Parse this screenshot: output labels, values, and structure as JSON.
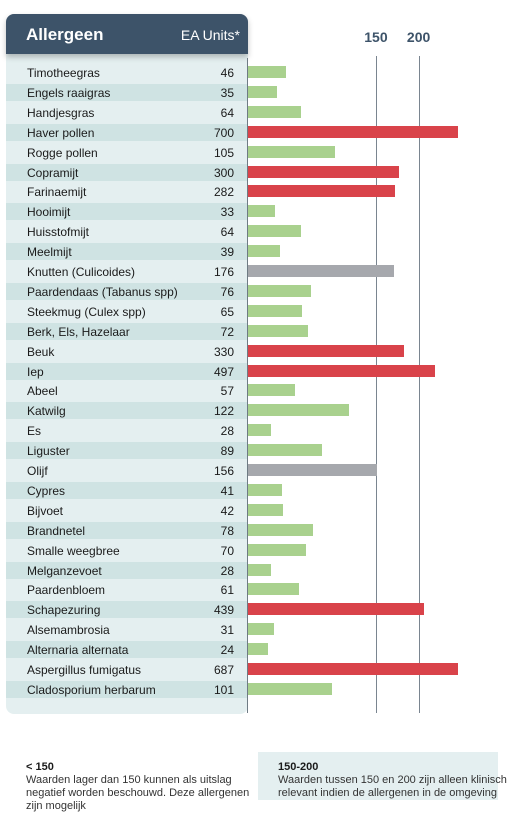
{
  "chart_data": {
    "type": "bar",
    "orientation": "horizontal",
    "header": {
      "title": "Allergeen",
      "units": "EA Units*"
    },
    "reference_lines": [
      150,
      200
    ],
    "categories": [
      "Timotheegras",
      "Engels raaigras",
      "Handjesgras",
      "Haver pollen",
      "Rogge pollen",
      "Copramijt",
      "Farinaemijt",
      "Hooimijt",
      "Huisstofmijt",
      "Meelmijt",
      "Knutten (Culicoides)",
      "Paardendaas (Tabanus spp)",
      "Steekmug (Culex spp)",
      "Berk, Els, Hazelaar",
      "Beuk",
      "Iep",
      "Abeel",
      "Katwilg",
      "Es",
      "Liguster",
      "Olijf",
      "Cypres",
      "Bijvoet",
      "Brandnetel",
      "Smalle weegbree",
      "Melganzevoet",
      "Paardenbloem",
      "Schapezuring",
      "Alsemambrosia",
      "Alternaria alternata",
      "Aspergillus fumigatus",
      "Cladosporium herbarum"
    ],
    "values": [
      46,
      35,
      64,
      700,
      105,
      300,
      282,
      33,
      64,
      39,
      176,
      76,
      65,
      72,
      330,
      497,
      57,
      122,
      28,
      89,
      156,
      41,
      42,
      78,
      70,
      28,
      61,
      439,
      31,
      24,
      687,
      101
    ],
    "colors": {
      "low": "#a9d18e",
      "mid": "#a6a8ad",
      "high": "#d9434a"
    }
  },
  "legend": [
    {
      "title": "< 150",
      "text": "Waarden lager dan 150 kunnen als uitslag negatief worden beschouwd. Deze allergenen zijn mogelijk"
    },
    {
      "title": "150-200",
      "text": "Waarden tussen 150 en 200 zijn alleen klinisch relevant indien de allergenen in de omgeving"
    }
  ]
}
